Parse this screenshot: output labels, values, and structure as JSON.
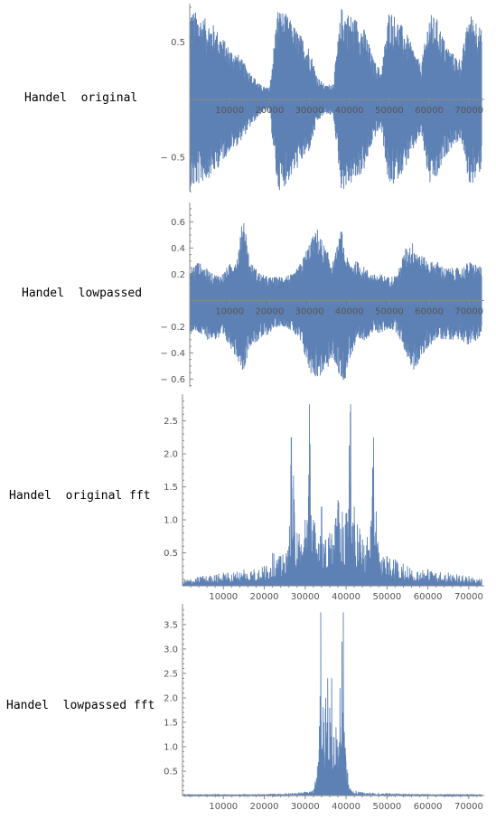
{
  "chart_data": [
    {
      "type": "line",
      "label": "Handel original",
      "series": [
        {
          "values_description_note": ""
        }
      ],
      "envelope": {
        "x": [
          0,
          2000,
          4000,
          6000,
          8000,
          10000,
          12000,
          14000,
          16000,
          18000,
          20000,
          22000,
          24000,
          26000,
          28000,
          30000,
          32000,
          34000,
          36000,
          38000,
          40000,
          42000,
          44000,
          46000,
          48000,
          50000,
          52000,
          54000,
          56000,
          58000,
          60000,
          62000,
          64000,
          66000,
          68000,
          70000,
          72000,
          73113
        ],
        "amplitude": [
          0.8,
          0.75,
          0.7,
          0.65,
          0.55,
          0.45,
          0.4,
          0.3,
          0.2,
          0.12,
          0.1,
          0.8,
          0.75,
          0.65,
          0.55,
          0.45,
          0.2,
          0.12,
          0.15,
          0.8,
          0.75,
          0.7,
          0.6,
          0.35,
          0.25,
          0.8,
          0.7,
          0.6,
          0.45,
          0.3,
          0.75,
          0.7,
          0.5,
          0.4,
          0.35,
          0.75,
          0.7,
          0.6
        ]
      },
      "xlim": [
        0,
        73113
      ],
      "ylim": [
        -0.8,
        0.8
      ],
      "xticks": [
        10000,
        20000,
        30000,
        40000,
        50000,
        60000,
        70000
      ],
      "yticks": [
        0.5,
        -0.5
      ],
      "xtick_labels": [
        "10000",
        "20000",
        "30000",
        "40000",
        "50000",
        "60000",
        "70000"
      ],
      "ytick_labels": [
        "0.5",
        "− 0.5"
      ],
      "color": "#5E81B5"
    },
    {
      "type": "line",
      "label": "Handel lowpassed",
      "envelope": {
        "x": [
          0,
          2000,
          4000,
          6000,
          8000,
          10000,
          12000,
          13500,
          15000,
          18000,
          20000,
          22000,
          24000,
          26000,
          28000,
          30000,
          32000,
          34000,
          36000,
          38000,
          39000,
          40000,
          42000,
          44000,
          46000,
          48000,
          50000,
          52000,
          54000,
          56000,
          58000,
          60000,
          62000,
          64000,
          66000,
          68000,
          70000,
          72000,
          73113
        ],
        "amplitude_pos": [
          0.25,
          0.3,
          0.25,
          0.2,
          0.2,
          0.28,
          0.35,
          0.68,
          0.3,
          0.2,
          0.18,
          0.18,
          0.2,
          0.2,
          0.3,
          0.45,
          0.55,
          0.4,
          0.3,
          0.55,
          0.35,
          0.3,
          0.3,
          0.25,
          0.2,
          0.2,
          0.18,
          0.2,
          0.4,
          0.45,
          0.35,
          0.3,
          0.3,
          0.25,
          0.25,
          0.25,
          0.3,
          0.28,
          0.25
        ],
        "amplitude_neg": [
          0.25,
          0.25,
          0.3,
          0.3,
          0.3,
          0.35,
          0.45,
          0.55,
          0.35,
          0.3,
          0.25,
          0.2,
          0.2,
          0.25,
          0.35,
          0.55,
          0.6,
          0.55,
          0.45,
          0.62,
          0.6,
          0.45,
          0.35,
          0.3,
          0.25,
          0.25,
          0.22,
          0.25,
          0.4,
          0.55,
          0.45,
          0.35,
          0.3,
          0.3,
          0.3,
          0.3,
          0.35,
          0.3,
          0.3
        ]
      },
      "xlim": [
        0,
        73113
      ],
      "ylim": [
        -0.66,
        0.72
      ],
      "xticks": [
        10000,
        20000,
        30000,
        40000,
        50000,
        60000,
        70000
      ],
      "yticks": [
        0.6,
        0.4,
        0.2,
        -0.2,
        -0.4,
        -0.6
      ],
      "xtick_labels": [
        "10000",
        "20000",
        "30000",
        "40000",
        "50000",
        "60000",
        "70000"
      ],
      "ytick_labels": [
        "0.6",
        "0.4",
        "0.2",
        "− 0.2",
        "− 0.4",
        "− 0.6"
      ],
      "color": "#5E81B5"
    },
    {
      "type": "line",
      "label": "Handel original fft",
      "peaks": {
        "x": [
          0,
          5000,
          10000,
          15000,
          20000,
          22000,
          24000,
          26000,
          26600,
          28000,
          30000,
          31000,
          32000,
          34000,
          35000,
          36000,
          38000,
          40000,
          41100,
          42000,
          44000,
          46000,
          46700,
          48000,
          50000,
          52000,
          55000,
          60000,
          65000,
          70000,
          73113
        ],
        "y": [
          0.1,
          0.15,
          0.2,
          0.25,
          0.3,
          0.5,
          0.45,
          0.6,
          2.25,
          0.8,
          1.0,
          2.75,
          1.0,
          1.2,
          0.7,
          0.8,
          1.3,
          1.1,
          2.75,
          1.2,
          0.7,
          0.9,
          2.25,
          0.5,
          0.45,
          0.4,
          0.3,
          0.25,
          0.2,
          0.15,
          0.1
        ]
      },
      "xlim": [
        0,
        73113
      ],
      "ylim": [
        0,
        2.85
      ],
      "xticks": [
        10000,
        20000,
        30000,
        40000,
        50000,
        60000,
        70000
      ],
      "yticks": [
        0.5,
        1.0,
        1.5,
        2.0,
        2.5
      ],
      "xtick_labels": [
        "10000",
        "20000",
        "30000",
        "40000",
        "50000",
        "60000",
        "70000"
      ],
      "ytick_labels": [
        "0.5",
        "1.0",
        "1.5",
        "2.0",
        "2.5"
      ],
      "color": "#5E81B5"
    },
    {
      "type": "line",
      "label": "Handel lowpassed fft",
      "peaks": {
        "x": [
          0,
          10000,
          20000,
          26000,
          30000,
          32000,
          33000,
          33800,
          34500,
          35000,
          35500,
          36000,
          36500,
          37000,
          37500,
          38000,
          38500,
          39300,
          40000,
          41000,
          43000,
          50000,
          60000,
          70000,
          73113
        ],
        "y": [
          0.02,
          0.02,
          0.03,
          0.05,
          0.08,
          0.1,
          0.6,
          3.75,
          1.5,
          2.0,
          2.4,
          1.8,
          2.4,
          1.2,
          1.4,
          1.0,
          2.2,
          3.75,
          0.7,
          0.15,
          0.08,
          0.05,
          0.03,
          0.02,
          0.02
        ]
      },
      "xlim": [
        0,
        73113
      ],
      "ylim": [
        0,
        3.85
      ],
      "xticks": [
        10000,
        20000,
        30000,
        40000,
        50000,
        60000,
        70000
      ],
      "yticks": [
        0.5,
        1.0,
        1.5,
        2.0,
        2.5,
        3.0,
        3.5
      ],
      "xtick_labels": [
        "10000",
        "20000",
        "30000",
        "40000",
        "50000",
        "60000",
        "70000"
      ],
      "ytick_labels": [
        "0.5",
        "1.0",
        "1.5",
        "2.0",
        "2.5",
        "3.0",
        "3.5"
      ],
      "color": "#5E81B5"
    }
  ],
  "labels": {
    "row1": "Handel  original",
    "row2": "Handel  lowpassed",
    "row3": "Handel  original fft",
    "row4": "Handel  lowpassed fft"
  }
}
